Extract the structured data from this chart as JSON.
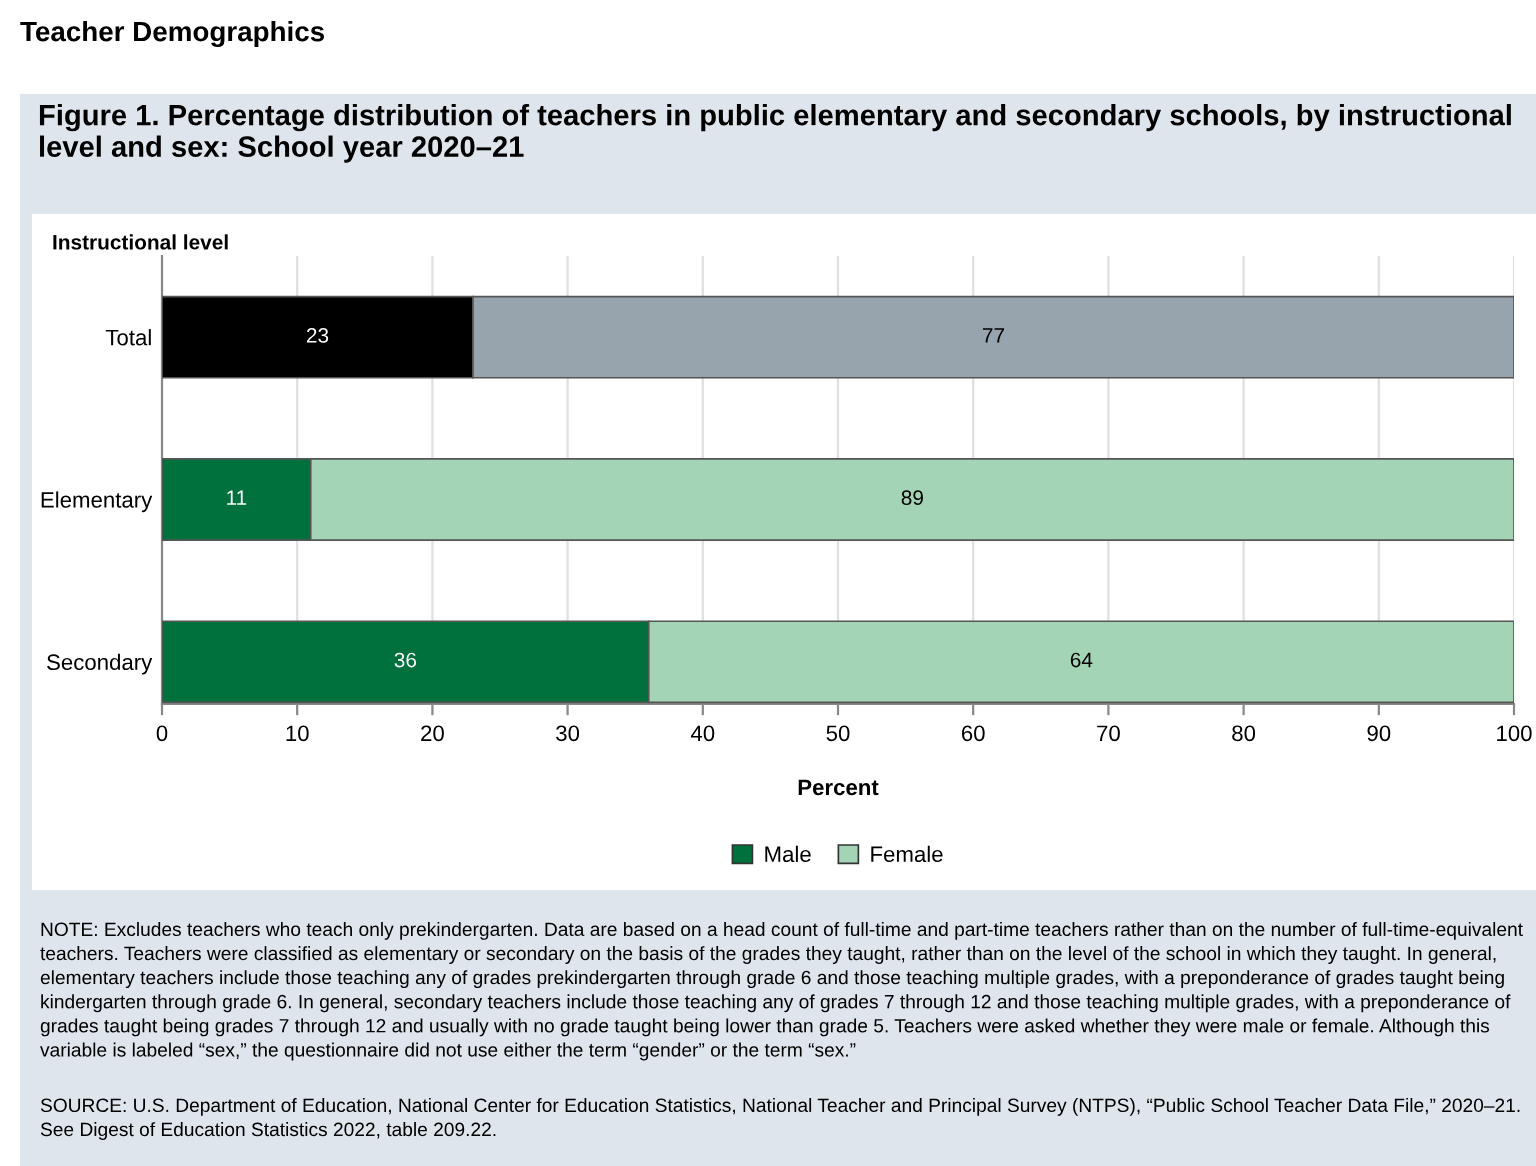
{
  "chart_data": {
    "type": "bar",
    "orientation": "horizontal",
    "stacked": true,
    "title": "Figure 1. Percentage distribution of teachers in public elementary and secondary schools, by instructional level and sex: School year 2020–21",
    "ylabel": "Instructional level",
    "xlabel": "Percent",
    "categories": [
      "Total",
      "Elementary",
      "Secondary"
    ],
    "series": [
      {
        "name": "Male",
        "color": "#00703c",
        "colors": [
          "#000000",
          "#00703c",
          "#00703c"
        ],
        "values": [
          23,
          11,
          36
        ]
      },
      {
        "name": "Female",
        "color": "#a3d4b5",
        "colors": [
          "#97a4ae",
          "#a3d4b5",
          "#a3d4b5"
        ],
        "values": [
          77,
          89,
          64
        ]
      }
    ],
    "xlim": [
      0,
      100
    ],
    "xticks": [
      0,
      10,
      20,
      30,
      40,
      50,
      60,
      70,
      80,
      90,
      100
    ],
    "grid": "x",
    "legend": "bottom",
    "data_labels": true,
    "annotations": [
      "Teacher Demographics",
      "NOTE: Excludes teachers who teach only prekindergarten. Data are based on a head count of full-time and part-time teachers rather than on the number of full-time-equivalent teachers. Teachers were classified as elementary or secondary on the basis of the grades they taught, rather than on the level of the school in which they taught. In general, elementary teachers include those teaching any of grades prekindergarten through grade 6 and those teaching multiple grades, with a preponderance of grades taught being kindergarten through grade 6. In general, secondary teachers include those teaching any of grades 7 through 12 and those teaching multiple grades, with a preponderance of grades taught being grades 7 through 12 and usually with no grade taught being lower than grade 5. Teachers were asked whether they were male or female. Although this variable is labeled “sex,” the questionnaire did not use either the term “gender” or the term “sex.”",
      "SOURCE: U.S. Department of Education, National Center for Education Statistics, National Teacher and Principal Survey (NTPS), “Public School Teacher Data File,” 2020–21. See Digest of Education Statistics 2022, table 209.22."
    ]
  }
}
